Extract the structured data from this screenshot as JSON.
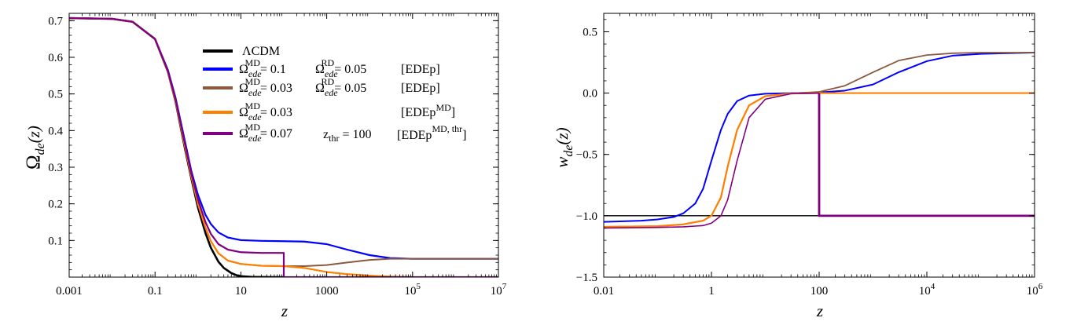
{
  "chart_data": [
    {
      "type": "line",
      "xscale": "log10",
      "xlim": [
        0.001,
        10000000
      ],
      "ylim": [
        0.0,
        0.72
      ],
      "xlabel": "z",
      "ylabel": "Ω_de(z)",
      "ylabel_parts": {
        "main": "Ω",
        "sub": "de",
        "arg": "(z)"
      },
      "xticks": [
        {
          "v": 0.001,
          "t": "0.001"
        },
        {
          "v": 0.1,
          "t": "0.1"
        },
        {
          "v": 10,
          "t": "10"
        },
        {
          "v": 1000,
          "t": "1000"
        },
        {
          "v": 100000,
          "base": "10",
          "exp": "5"
        },
        {
          "v": 10000000,
          "base": "10",
          "exp": "7"
        }
      ],
      "yticks": [
        {
          "v": 0.1,
          "t": "0.1"
        },
        {
          "v": 0.2,
          "t": "0.2"
        },
        {
          "v": 0.3,
          "t": "0.3"
        },
        {
          "v": 0.4,
          "t": "0.4"
        },
        {
          "v": 0.5,
          "t": "0.5"
        },
        {
          "v": 0.6,
          "t": "0.6"
        },
        {
          "v": 0.7,
          "t": "0.7"
        }
      ],
      "legend": {
        "placement": "top-center",
        "entries": [
          {
            "color": "#000000",
            "text": "ΛCDM"
          },
          {
            "color": "#0000ff",
            "omega_md": "= 0.1",
            "omega_rd": "= 0.05",
            "tag": "[EDEp]"
          },
          {
            "color": "#8b5a3c",
            "omega_md": "= 0.03",
            "omega_rd": "= 0.05",
            "tag": "[EDEp]"
          },
          {
            "color": "#ff8000",
            "omega_md": "= 0.03",
            "tag": "[EDEp",
            "tag_sup": "MD",
            "tag_end": "]"
          },
          {
            "color": "#800080",
            "omega_md": "= 0.07",
            "zthr_label": "z",
            "zthr_sub": "thr",
            "zthr_value": "= 100",
            "tag": "[EDEp",
            "tag_sup": "MD, thr",
            "tag_end": "]"
          }
        ],
        "omega_sym": "Ω",
        "omega_sub": "ede",
        "md_sup": "MD",
        "rd_sup": "RD"
      },
      "series": [
        {
          "name": "ΛCDM",
          "color": "#000000",
          "width": 2.6,
          "points": [
            [
              0.001,
              0.707
            ],
            [
              0.01,
              0.705
            ],
            [
              0.03,
              0.697
            ],
            [
              0.1,
              0.65
            ],
            [
              0.2,
              0.56
            ],
            [
              0.3,
              0.48
            ],
            [
              0.5,
              0.35
            ],
            [
              0.7,
              0.27
            ],
            [
              1,
              0.19
            ],
            [
              1.5,
              0.12
            ],
            [
              2,
              0.08
            ],
            [
              3,
              0.042
            ],
            [
              4,
              0.025
            ],
            [
              6,
              0.011
            ],
            [
              8,
              0.005
            ],
            [
              10,
              0.0025
            ],
            [
              20,
              0.0003
            ],
            [
              100,
              0
            ]
          ]
        },
        {
          "name": "EDEp 0.1/0.05",
          "color": "#0000ff",
          "width": 2.2,
          "points": [
            [
              0.001,
              0.707
            ],
            [
              0.01,
              0.705
            ],
            [
              0.03,
              0.697
            ],
            [
              0.1,
              0.65
            ],
            [
              0.2,
              0.565
            ],
            [
              0.3,
              0.49
            ],
            [
              0.5,
              0.37
            ],
            [
              0.7,
              0.29
            ],
            [
              1,
              0.225
            ],
            [
              1.5,
              0.17
            ],
            [
              2,
              0.145
            ],
            [
              3,
              0.122
            ],
            [
              5,
              0.108
            ],
            [
              10,
              0.101
            ],
            [
              30,
              0.099
            ],
            [
              100,
              0.098
            ],
            [
              300,
              0.097
            ],
            [
              1000,
              0.09
            ],
            [
              3000,
              0.075
            ],
            [
              10000,
              0.06
            ],
            [
              30000,
              0.052
            ],
            [
              100000,
              0.05
            ],
            [
              10000000,
              0.05
            ]
          ]
        },
        {
          "name": "EDEp 0.03/0.05",
          "color": "#8b5a3c",
          "width": 2.0,
          "points": [
            [
              0.001,
              0.707
            ],
            [
              0.01,
              0.705
            ],
            [
              0.03,
              0.697
            ],
            [
              0.1,
              0.65
            ],
            [
              0.2,
              0.56
            ],
            [
              0.3,
              0.482
            ],
            [
              0.5,
              0.355
            ],
            [
              0.7,
              0.275
            ],
            [
              1,
              0.2
            ],
            [
              1.5,
              0.135
            ],
            [
              2,
              0.098
            ],
            [
              3,
              0.065
            ],
            [
              5,
              0.045
            ],
            [
              10,
              0.036
            ],
            [
              30,
              0.031
            ],
            [
              100,
              0.03
            ],
            [
              300,
              0.03
            ],
            [
              1000,
              0.033
            ],
            [
              3000,
              0.04
            ],
            [
              10000,
              0.047
            ],
            [
              30000,
              0.05
            ],
            [
              100000,
              0.05
            ],
            [
              10000000,
              0.05
            ]
          ]
        },
        {
          "name": "EDEp MD",
          "color": "#ff8000",
          "width": 2.2,
          "points": [
            [
              0.001,
              0.707
            ],
            [
              0.01,
              0.705
            ],
            [
              0.03,
              0.697
            ],
            [
              0.1,
              0.65
            ],
            [
              0.2,
              0.56
            ],
            [
              0.3,
              0.482
            ],
            [
              0.5,
              0.355
            ],
            [
              0.7,
              0.275
            ],
            [
              1,
              0.2
            ],
            [
              1.5,
              0.135
            ],
            [
              2,
              0.098
            ],
            [
              3,
              0.065
            ],
            [
              5,
              0.045
            ],
            [
              10,
              0.036
            ],
            [
              30,
              0.031
            ],
            [
              100,
              0.03
            ],
            [
              300,
              0.025
            ],
            [
              1000,
              0.014
            ],
            [
              3000,
              0.008
            ],
            [
              10000,
              0.004
            ],
            [
              30000,
              0.0015
            ],
            [
              100000,
              0
            ]
          ]
        },
        {
          "name": "EDEp MD,thr",
          "color": "#800080",
          "width": 2.2,
          "points": [
            [
              0.001,
              0.707
            ],
            [
              0.01,
              0.705
            ],
            [
              0.03,
              0.697
            ],
            [
              0.1,
              0.65
            ],
            [
              0.2,
              0.562
            ],
            [
              0.3,
              0.486
            ],
            [
              0.5,
              0.363
            ],
            [
              0.7,
              0.283
            ],
            [
              1,
              0.212
            ],
            [
              1.5,
              0.15
            ],
            [
              2,
              0.118
            ],
            [
              3,
              0.09
            ],
            [
              5,
              0.075
            ],
            [
              10,
              0.068
            ],
            [
              30,
              0.066
            ],
            [
              100,
              0.066
            ],
            [
              100,
              0.0
            ],
            [
              10000000,
              0.0
            ]
          ]
        }
      ]
    },
    {
      "type": "line",
      "xscale": "log10",
      "xlim": [
        0.01,
        1000000
      ],
      "ylim": [
        -1.5,
        0.65
      ],
      "xlabel": "z",
      "ylabel": "w_de(z)",
      "ylabel_parts": {
        "main": "w",
        "sub": "de",
        "arg": "(z)"
      },
      "xticks": [
        {
          "v": 0.01,
          "t": "0.01"
        },
        {
          "v": 1,
          "t": "1"
        },
        {
          "v": 100,
          "t": "100"
        },
        {
          "v": 10000,
          "base": "10",
          "exp": "4"
        },
        {
          "v": 1000000,
          "base": "10",
          "exp": "6"
        }
      ],
      "yticks": [
        {
          "v": -1.5,
          "t": "−1.5"
        },
        {
          "v": -1.0,
          "t": "−1.0"
        },
        {
          "v": -0.5,
          "t": "−0.5"
        },
        {
          "v": 0.0,
          "t": "0.0"
        },
        {
          "v": 0.5,
          "t": "0.5"
        }
      ],
      "series": [
        {
          "name": "ΛCDM",
          "color": "#000000",
          "width": 1.4,
          "points": [
            [
              0.01,
              -1.0
            ],
            [
              1000000,
              -1.0
            ]
          ]
        },
        {
          "name": "EDEp 0.1/0.05",
          "color": "#0000ff",
          "width": 2.0,
          "points": [
            [
              0.01,
              -1.05
            ],
            [
              0.05,
              -1.04
            ],
            [
              0.1,
              -1.03
            ],
            [
              0.2,
              -1.01
            ],
            [
              0.3,
              -0.98
            ],
            [
              0.5,
              -0.9
            ],
            [
              0.7,
              -0.78
            ],
            [
              1,
              -0.55
            ],
            [
              1.5,
              -0.3
            ],
            [
              2,
              -0.17
            ],
            [
              3,
              -0.065
            ],
            [
              5,
              -0.02
            ],
            [
              10,
              -0.005
            ],
            [
              30,
              0.0
            ],
            [
              100,
              0.005
            ],
            [
              300,
              0.02
            ],
            [
              1000,
              0.07
            ],
            [
              3000,
              0.17
            ],
            [
              10000,
              0.26
            ],
            [
              30000,
              0.305
            ],
            [
              100000,
              0.32
            ],
            [
              1000000,
              0.33
            ]
          ]
        },
        {
          "name": "EDEp 0.03/0.05",
          "color": "#8b5a3c",
          "width": 1.8,
          "points": [
            [
              0.01,
              -1.09
            ],
            [
              0.1,
              -1.085
            ],
            [
              0.3,
              -1.07
            ],
            [
              0.7,
              -1.04
            ],
            [
              1,
              -1.0
            ],
            [
              1.5,
              -0.85
            ],
            [
              2,
              -0.6
            ],
            [
              3,
              -0.3
            ],
            [
              5,
              -0.1
            ],
            [
              10,
              -0.025
            ],
            [
              30,
              -0.003
            ],
            [
              100,
              0.01
            ],
            [
              300,
              0.06
            ],
            [
              1000,
              0.17
            ],
            [
              3000,
              0.265
            ],
            [
              10000,
              0.31
            ],
            [
              30000,
              0.325
            ],
            [
              100000,
              0.33
            ],
            [
              1000000,
              0.33
            ]
          ]
        },
        {
          "name": "EDEp MD",
          "color": "#ff8000",
          "width": 2.2,
          "points": [
            [
              0.01,
              -1.09
            ],
            [
              0.1,
              -1.085
            ],
            [
              0.3,
              -1.07
            ],
            [
              0.7,
              -1.04
            ],
            [
              1,
              -1.0
            ],
            [
              1.5,
              -0.85
            ],
            [
              2,
              -0.6
            ],
            [
              3,
              -0.3
            ],
            [
              5,
              -0.1
            ],
            [
              10,
              -0.025
            ],
            [
              30,
              -0.003
            ],
            [
              100,
              0.0
            ],
            [
              1000000,
              0.0
            ]
          ]
        },
        {
          "name": "EDEp MD,thr",
          "color": "#800080",
          "width": 1.6,
          "points": [
            [
              0.01,
              -1.1
            ],
            [
              0.1,
              -1.095
            ],
            [
              0.3,
              -1.09
            ],
            [
              0.7,
              -1.08
            ],
            [
              1,
              -1.06
            ],
            [
              1.5,
              -1.0
            ],
            [
              2,
              -0.87
            ],
            [
              3,
              -0.55
            ],
            [
              5,
              -0.2
            ],
            [
              10,
              -0.05
            ],
            [
              30,
              -0.005
            ],
            [
              100,
              0.0
            ]
          ]
        },
        {
          "name": "EDEp MD,thr (after threshold)",
          "color": "#800080",
          "width": 2.8,
          "points": [
            [
              100,
              0.0
            ],
            [
              100,
              -1.0
            ],
            [
              1000000,
              -1.0
            ]
          ]
        }
      ]
    }
  ]
}
